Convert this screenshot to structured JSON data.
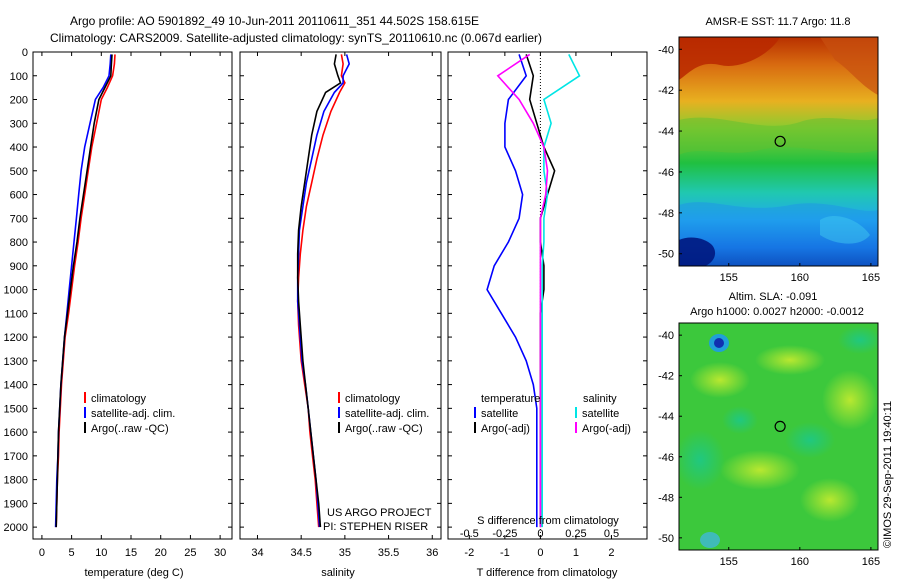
{
  "header": {
    "line1": "Argo profile: AO 5901892_49 10-Jun-2011 20110611_351 44.502S 158.615E",
    "line2": "Climatology: CARS2009. Satellite-adjusted climatology: synTS_20110610.nc (0.067d earlier)"
  },
  "colors": {
    "climatology": "#ff0000",
    "satellite": "#0000ff",
    "argo": "#000000",
    "salinity_satellite": "#00e5e5",
    "salinity_argo": "#ff00ff"
  },
  "depth_ticks": [
    "0",
    "100",
    "200",
    "300",
    "400",
    "500",
    "600",
    "700",
    "800",
    "900",
    "1000",
    "1100",
    "1200",
    "1300",
    "1400",
    "1500",
    "1600",
    "1700",
    "1800",
    "1900",
    "2000"
  ],
  "legend": {
    "climatology": "climatology",
    "satellite_adj": "satellite-adj. clim.",
    "argo_raw": "Argo(..raw -QC)",
    "diff_temp_heading": "temperature",
    "diff_sal_heading": "salinity",
    "satellite": "satellite",
    "argo_adj": "Argo(-adj)"
  },
  "credits": {
    "project": "US ARGO PROJECT",
    "pi": "PI: STEPHEN RISER",
    "imos": "©IMOS 29-Sep-2011 19:40:11"
  },
  "chart_data": [
    {
      "type": "line",
      "title": "",
      "xlabel": "temperature (deg C)",
      "ylabel": "",
      "xticks": [
        "0",
        "5",
        "10",
        "15",
        "20",
        "25",
        "30"
      ],
      "xlim": [
        -1.5,
        32
      ],
      "ylim": [
        0,
        2050
      ],
      "y_inverted": true,
      "series": [
        {
          "name": "climatology",
          "color": "#ff0000",
          "x": [
            12.3,
            12.2,
            11.9,
            11.0,
            10.0,
            9.2,
            8.4,
            7.8,
            7.2,
            6.6,
            6.1,
            5.5,
            5.0,
            4.5,
            3.9,
            3.6,
            3.3,
            3.1,
            2.9,
            2.8,
            2.6,
            2.5,
            2.4
          ],
          "y": [
            10,
            50,
            100,
            150,
            200,
            300,
            400,
            500,
            600,
            700,
            800,
            900,
            1000,
            1100,
            1200,
            1300,
            1400,
            1500,
            1600,
            1700,
            1800,
            1900,
            2000
          ]
        },
        {
          "name": "satellite-adj. clim.",
          "color": "#0000ff",
          "x": [
            11.6,
            11.5,
            11.3,
            10.3,
            9.0,
            8.1,
            7.2,
            6.6,
            6.2,
            5.8,
            5.4,
            5.0,
            4.6,
            4.2,
            3.8,
            3.5,
            3.2,
            3.0,
            2.8,
            2.7,
            2.5,
            2.4,
            2.3
          ],
          "y": [
            10,
            50,
            100,
            150,
            200,
            300,
            400,
            500,
            600,
            700,
            800,
            900,
            1000,
            1100,
            1200,
            1300,
            1400,
            1500,
            1600,
            1700,
            1800,
            1900,
            2000
          ]
        },
        {
          "name": "Argo(..raw -QC)",
          "color": "#000000",
          "x": [
            11.8,
            11.7,
            11.6,
            10.6,
            9.6,
            8.8,
            8.2,
            7.6,
            7.0,
            6.4,
            5.9,
            5.3,
            4.8,
            4.3,
            3.8,
            3.5,
            3.2,
            3.0,
            2.8,
            2.7,
            2.6,
            2.5,
            2.4
          ],
          "y": [
            10,
            50,
            100,
            150,
            200,
            300,
            400,
            500,
            600,
            700,
            800,
            900,
            1000,
            1100,
            1200,
            1300,
            1400,
            1500,
            1600,
            1700,
            1800,
            1900,
            2000
          ]
        }
      ]
    },
    {
      "type": "line",
      "title": "",
      "xlabel": "salinity",
      "ylabel": "",
      "xticks": [
        "34",
        "34.5",
        "35",
        "35.5",
        "36"
      ],
      "xlim": [
        33.8,
        36.1
      ],
      "ylim": [
        0,
        2050
      ],
      "y_inverted": true,
      "series": [
        {
          "name": "climatology",
          "color": "#ff0000",
          "x": [
            34.96,
            34.98,
            34.96,
            35.0,
            34.94,
            34.84,
            34.75,
            34.68,
            34.62,
            34.56,
            34.52,
            34.49,
            34.47,
            34.46,
            34.47,
            34.5,
            34.54,
            34.58,
            34.6,
            34.63,
            34.66,
            34.68,
            34.7
          ],
          "y": [
            10,
            50,
            100,
            130,
            170,
            250,
            350,
            450,
            550,
            650,
            750,
            850,
            950,
            1050,
            1150,
            1300,
            1400,
            1500,
            1600,
            1700,
            1800,
            1900,
            2000
          ]
        },
        {
          "name": "satellite-adj. clim.",
          "color": "#0000ff",
          "x": [
            35.02,
            35.05,
            34.98,
            34.98,
            34.88,
            34.76,
            34.68,
            34.62,
            34.56,
            34.52,
            34.48,
            34.47,
            34.46,
            34.46,
            34.48,
            34.51,
            34.55,
            34.58,
            34.61,
            34.64,
            34.67,
            34.69,
            34.71
          ],
          "y": [
            10,
            50,
            100,
            130,
            170,
            250,
            350,
            450,
            550,
            650,
            750,
            850,
            950,
            1050,
            1150,
            1300,
            1400,
            1500,
            1600,
            1700,
            1800,
            1900,
            2000
          ]
        },
        {
          "name": "Argo(..raw -QC)",
          "color": "#000000",
          "x": [
            34.9,
            34.88,
            34.92,
            34.95,
            34.78,
            34.68,
            34.62,
            34.58,
            34.54,
            34.5,
            34.47,
            34.46,
            34.46,
            34.47,
            34.49,
            34.52,
            34.55,
            34.58,
            34.61,
            34.64,
            34.67,
            34.7,
            34.72
          ],
          "y": [
            10,
            50,
            100,
            130,
            170,
            250,
            350,
            450,
            550,
            650,
            750,
            850,
            950,
            1050,
            1150,
            1300,
            1400,
            1500,
            1600,
            1700,
            1800,
            1900,
            2000
          ]
        }
      ]
    },
    {
      "type": "line",
      "title": "",
      "xlabel": "T difference from climatology",
      "x2label": "S difference from climatology",
      "ylabel": "",
      "xticks": [
        "-2",
        "-1",
        "0",
        "1",
        "2"
      ],
      "x2ticks": [
        "-0.5",
        "-0.25",
        "0",
        "0.25",
        "0.5"
      ],
      "xlim": [
        -2.6,
        3.0
      ],
      "ylim": [
        0,
        2050
      ],
      "y_inverted": true,
      "series": [
        {
          "name": "temperature satellite",
          "color": "#0000ff",
          "x": [
            -0.6,
            -0.4,
            -0.9,
            -1.0,
            -1.0,
            -0.7,
            -0.5,
            -0.6,
            -0.9,
            -1.3,
            -1.5,
            -1.1,
            -0.7,
            -0.4,
            -0.2,
            -0.1,
            -0.1,
            -0.1,
            -0.1,
            -0.1,
            -0.1
          ],
          "y": [
            10,
            100,
            200,
            300,
            400,
            500,
            600,
            700,
            800,
            900,
            1000,
            1100,
            1200,
            1300,
            1400,
            1500,
            1600,
            1700,
            1800,
            1900,
            2000
          ]
        },
        {
          "name": "temperature Argo(-adj)",
          "color": "#000000",
          "x": [
            -0.4,
            -0.2,
            -0.3,
            -0.1,
            0.1,
            0.4,
            0.2,
            0.0,
            0.0,
            0.1,
            0.1,
            0.0,
            0.0,
            0.0,
            0.0,
            0.0,
            0.0,
            0.0,
            0.0,
            0.0,
            0.0
          ],
          "y": [
            10,
            100,
            200,
            300,
            400,
            500,
            600,
            700,
            800,
            900,
            1000,
            1100,
            1200,
            1300,
            1400,
            1500,
            1600,
            1700,
            1800,
            1900,
            2000
          ]
        },
        {
          "name": "salinity satellite",
          "color": "#00e5e5",
          "x": [
            0.8,
            1.1,
            0.1,
            0.3,
            0.1,
            0.1,
            0.2,
            0.1,
            0.1,
            0.05,
            0.05,
            0.05,
            0.05,
            0.05,
            0.05,
            0.05,
            0.05,
            0.05,
            0.05,
            0.05,
            0.05
          ],
          "y": [
            10,
            100,
            200,
            300,
            400,
            500,
            600,
            700,
            800,
            900,
            1000,
            1100,
            1200,
            1300,
            1400,
            1500,
            1600,
            1700,
            1800,
            1900,
            2000
          ]
        },
        {
          "name": "salinity Argo(-adj)",
          "color": "#ff00ff",
          "x": [
            -0.3,
            -1.2,
            -0.6,
            -0.2,
            0.1,
            0.2,
            0.15,
            0.0,
            0.0,
            0.0,
            0.0,
            0.0,
            0.0,
            0.0,
            0.0,
            0.0,
            0.0,
            0.0,
            0.0,
            0.0,
            0.0
          ],
          "y": [
            10,
            100,
            200,
            300,
            400,
            500,
            600,
            700,
            800,
            900,
            1000,
            1100,
            1200,
            1300,
            1400,
            1500,
            1600,
            1700,
            1800,
            1900,
            2000
          ]
        }
      ]
    },
    {
      "type": "heatmap",
      "title": "AMSR-E SST: 11.7 Argo: 11.8",
      "xticks": [
        "155",
        "160",
        "165"
      ],
      "yticks": [
        "-40",
        "-42",
        "-44",
        "-46",
        "-48",
        "-50"
      ],
      "xlim": [
        151.5,
        165.5
      ],
      "ylim": [
        -50.6,
        -39.4
      ],
      "marker": {
        "lon": 158.615,
        "lat": -44.502
      }
    },
    {
      "type": "heatmap",
      "title": "Altim. SLA: -0.091",
      "subtitle": "Argo h1000: 0.0027 h2000: -0.0012",
      "xticks": [
        "155",
        "160",
        "165"
      ],
      "yticks": [
        "-40",
        "-42",
        "-44",
        "-46",
        "-48",
        "-50"
      ],
      "xlim": [
        151.5,
        165.5
      ],
      "ylim": [
        -50.6,
        -39.4
      ],
      "marker": {
        "lon": 158.615,
        "lat": -44.502
      }
    }
  ]
}
